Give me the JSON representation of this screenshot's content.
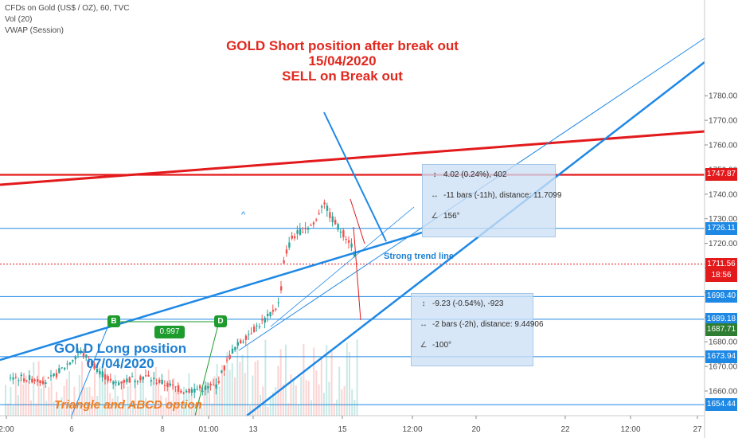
{
  "header": {
    "symbol_line": "CFDs on Gold (US$ / OZ), 60, TVC",
    "indicator_1": "Vol (20)",
    "indicator_2": "VWAP (Session)"
  },
  "annotations": {
    "short_title": "GOLD Short position after break out",
    "short_date": "15/04/2020",
    "short_action": "SELL on Break out",
    "long_title": "GOLD Long position",
    "long_date": "07/04/2020",
    "pattern_note": "Triangle and ABCD option",
    "trend_label": "Strong trend line",
    "arrow_label": "^",
    "point_b": "B",
    "point_d": "D",
    "ratio": "0.997"
  },
  "measures": [
    {
      "icon": "price-range-icon",
      "text": "4.02 (0.24%), 402"
    },
    {
      "icon": "bars-range-icon",
      "text": "-11 bars (-11h), distance: 11.7099"
    },
    {
      "icon": "angle-icon",
      "text": "156°"
    },
    {
      "icon": "price-range-icon",
      "text": "-9.23 (-0.54%), -923"
    },
    {
      "icon": "bars-range-icon",
      "text": "-2 bars (-2h), distance: 9.44906"
    },
    {
      "icon": "angle-icon",
      "text": "-100°"
    }
  ],
  "price_tags": [
    {
      "value": "1747.87",
      "color": "#e31a1c"
    },
    {
      "value": "1726.11",
      "color": "#1e88e5"
    },
    {
      "value": "1711.56",
      "color": "#e31a1c"
    },
    {
      "value": "18:56",
      "color": "#e31a1c"
    },
    {
      "value": "1698.40",
      "color": "#1e88e5"
    },
    {
      "value": "1689.18",
      "color": "#1e88e5"
    },
    {
      "value": "1687.71",
      "color": "#2e7d32"
    },
    {
      "value": "1673.94",
      "color": "#1e88e5"
    },
    {
      "value": "1654.44",
      "color": "#1e88e5"
    }
  ],
  "chart_data": {
    "type": "candlestick",
    "symbol": "CFDs on Gold (US$ / OZ)",
    "interval": "60",
    "y_ticks": [
      1660,
      1670,
      1680,
      1690,
      1700,
      1710,
      1720,
      1730,
      1740,
      1750,
      1760,
      1770,
      1780
    ],
    "y_tick_labels": [
      "1660.00",
      "1670.00",
      "1680.00",
      "1690.00",
      "1700.00",
      "1710.00",
      "1720.00",
      "1730.00",
      "1740.00",
      "1750.00",
      "1760.00",
      "1770.00",
      "1780.00"
    ],
    "ylim": [
      1652,
      1785
    ],
    "x_tick_labels": [
      "2:00",
      "6",
      "8",
      "01:00",
      "13",
      "15",
      "12:00",
      "20",
      "22",
      "12:00",
      "27"
    ],
    "horizontal_levels": [
      {
        "value": 1747.87,
        "color": "#e31a1c",
        "style": "solid"
      },
      {
        "value": 1726.11,
        "color": "#1e88e5",
        "style": "solid"
      },
      {
        "value": 1711.56,
        "color": "#e31a1c",
        "style": "dotted"
      },
      {
        "value": 1698.4,
        "color": "#1e88e5",
        "style": "solid"
      },
      {
        "value": 1689.18,
        "color": "#1e88e5",
        "style": "solid"
      },
      {
        "value": 1673.94,
        "color": "#1e88e5",
        "style": "solid"
      },
      {
        "value": 1654.44,
        "color": "#1e88e5",
        "style": "solid"
      }
    ],
    "colors": {
      "up": "#26a69a",
      "down": "#ef5350",
      "level_red": "#e31a1c",
      "level_blue": "#1e88e5"
    },
    "grid": false
  }
}
